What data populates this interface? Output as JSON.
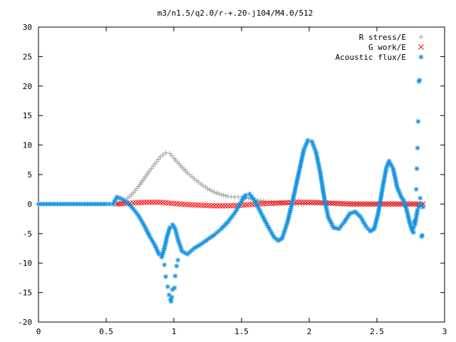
{
  "chart_data": {
    "type": "scatter",
    "title": "m3/n1.5/q2.0/r-+.20-j104/M4.0/512",
    "xlabel": "",
    "ylabel": "",
    "xlim": [
      0,
      3
    ],
    "ylim": [
      -20,
      30
    ],
    "xticks": [
      "0",
      "0.5",
      "1",
      "1.5",
      "2",
      "2.5",
      "3"
    ],
    "yticks": [
      "-20",
      "-15",
      "-10",
      "-5",
      "0",
      "5",
      "10",
      "15",
      "20",
      "25",
      "30"
    ],
    "legend_position": "top-right",
    "series": [
      {
        "name": "R stress/E",
        "legend_marker": "plus",
        "color": "#a0a0a0",
        "points": [
          [
            0.58,
            0.0
          ],
          [
            0.62,
            0.3
          ],
          [
            0.66,
            1.0
          ],
          [
            0.7,
            1.9
          ],
          [
            0.74,
            3.0
          ],
          [
            0.78,
            4.3
          ],
          [
            0.82,
            5.6
          ],
          [
            0.86,
            6.8
          ],
          [
            0.9,
            8.0
          ],
          [
            0.94,
            8.7
          ],
          [
            0.97,
            8.6
          ],
          [
            1.0,
            7.8
          ],
          [
            1.05,
            6.5
          ],
          [
            1.1,
            5.3
          ],
          [
            1.15,
            4.3
          ],
          [
            1.2,
            3.4
          ],
          [
            1.25,
            2.6
          ],
          [
            1.3,
            2.0
          ],
          [
            1.35,
            1.6
          ],
          [
            1.4,
            1.3
          ],
          [
            1.45,
            1.2
          ],
          [
            1.5,
            1.2
          ],
          [
            1.55,
            1.0
          ],
          [
            1.6,
            0.7
          ],
          [
            1.7,
            0.4
          ],
          [
            1.8,
            0.2
          ],
          [
            1.9,
            0.0
          ],
          [
            2.0,
            0.1
          ],
          [
            2.1,
            0.2
          ],
          [
            2.2,
            0.2
          ],
          [
            2.3,
            0.1
          ],
          [
            2.4,
            0.0
          ],
          [
            2.5,
            0.0
          ],
          [
            2.6,
            0.1
          ],
          [
            2.7,
            0.0
          ],
          [
            2.8,
            0.0
          ],
          [
            2.84,
            0.0
          ]
        ]
      },
      {
        "name": "G work/E",
        "legend_marker": "cross",
        "color": "#ff0000",
        "points": [
          [
            0.58,
            0.0
          ],
          [
            0.65,
            0.1
          ],
          [
            0.7,
            0.2
          ],
          [
            0.8,
            0.3
          ],
          [
            0.9,
            0.3
          ],
          [
            1.0,
            0.1
          ],
          [
            1.1,
            -0.1
          ],
          [
            1.2,
            -0.2
          ],
          [
            1.3,
            -0.3
          ],
          [
            1.4,
            -0.3
          ],
          [
            1.5,
            -0.2
          ],
          [
            1.6,
            0.0
          ],
          [
            1.7,
            0.1
          ],
          [
            1.8,
            0.2
          ],
          [
            1.9,
            0.3
          ],
          [
            2.0,
            0.3
          ],
          [
            2.1,
            0.2
          ],
          [
            2.2,
            0.1
          ],
          [
            2.3,
            0.0
          ],
          [
            2.4,
            0.0
          ],
          [
            2.5,
            0.0
          ],
          [
            2.6,
            0.0
          ],
          [
            2.7,
            0.0
          ],
          [
            2.8,
            0.0
          ],
          [
            2.84,
            0.0
          ]
        ]
      },
      {
        "name": "Acoustic flux/E",
        "legend_marker": "star",
        "color": "#1090e0",
        "points": [
          [
            0.0,
            0.0
          ],
          [
            0.1,
            0.0
          ],
          [
            0.2,
            0.0
          ],
          [
            0.3,
            0.0
          ],
          [
            0.4,
            0.0
          ],
          [
            0.5,
            0.0
          ],
          [
            0.55,
            0.0
          ],
          [
            0.58,
            1.2
          ],
          [
            0.62,
            0.8
          ],
          [
            0.66,
            0.2
          ],
          [
            0.7,
            -0.8
          ],
          [
            0.74,
            -2.0
          ],
          [
            0.78,
            -3.6
          ],
          [
            0.82,
            -5.4
          ],
          [
            0.86,
            -7.0
          ],
          [
            0.89,
            -8.5
          ],
          [
            0.91,
            -9.0
          ],
          [
            0.93,
            -7.5
          ],
          [
            0.95,
            -5.5
          ],
          [
            0.97,
            -4.0
          ],
          [
            0.99,
            -3.5
          ],
          [
            1.01,
            -4.2
          ],
          [
            1.03,
            -6.0
          ],
          [
            1.06,
            -8.0
          ],
          [
            1.1,
            -8.5
          ],
          [
            1.15,
            -7.5
          ],
          [
            1.2,
            -6.8
          ],
          [
            1.25,
            -6.0
          ],
          [
            1.3,
            -5.2
          ],
          [
            1.35,
            -4.2
          ],
          [
            1.4,
            -3.0
          ],
          [
            1.45,
            -1.5
          ],
          [
            1.5,
            0.5
          ],
          [
            1.53,
            1.5
          ],
          [
            1.56,
            1.7
          ],
          [
            1.6,
            0.5
          ],
          [
            1.65,
            -1.8
          ],
          [
            1.7,
            -4.0
          ],
          [
            1.74,
            -5.6
          ],
          [
            1.77,
            -6.2
          ],
          [
            1.8,
            -5.8
          ],
          [
            1.84,
            -3.0
          ],
          [
            1.88,
            0.8
          ],
          [
            1.92,
            5.0
          ],
          [
            1.96,
            9.2
          ],
          [
            1.99,
            10.8
          ],
          [
            2.02,
            10.6
          ],
          [
            2.05,
            8.8
          ],
          [
            2.08,
            5.5
          ],
          [
            2.11,
            1.2
          ],
          [
            2.14,
            -2.2
          ],
          [
            2.18,
            -4.0
          ],
          [
            2.22,
            -4.2
          ],
          [
            2.26,
            -3.0
          ],
          [
            2.3,
            -1.6
          ],
          [
            2.34,
            -1.3
          ],
          [
            2.38,
            -2.2
          ],
          [
            2.42,
            -3.8
          ],
          [
            2.45,
            -4.6
          ],
          [
            2.48,
            -4.2
          ],
          [
            2.51,
            -1.5
          ],
          [
            2.54,
            2.5
          ],
          [
            2.57,
            6.2
          ],
          [
            2.59,
            7.3
          ],
          [
            2.62,
            6.0
          ],
          [
            2.65,
            2.8
          ],
          [
            2.68,
            1.2
          ],
          [
            2.7,
            0.5
          ],
          [
            2.72,
            -1.0
          ],
          [
            2.74,
            -3.0
          ],
          [
            2.76,
            -4.5
          ],
          [
            2.78,
            -3.5
          ],
          [
            2.8,
            -1.0
          ],
          [
            2.82,
            0.0
          ],
          [
            2.84,
            -0.5
          ]
        ]
      },
      {
        "name": "",
        "legend_marker": "star",
        "color": "#1090e0",
        "points": [
          [
            0.93,
            -10.3
          ],
          [
            0.94,
            -12.3
          ],
          [
            0.955,
            -14.0
          ],
          [
            0.965,
            -15.4
          ],
          [
            0.975,
            -16.2
          ],
          [
            0.98,
            -16.5
          ],
          [
            0.985,
            -15.8
          ],
          [
            0.99,
            -14.5
          ],
          [
            1.005,
            -14.2
          ],
          [
            1.01,
            -12.2
          ],
          [
            1.02,
            -10.5
          ],
          [
            1.03,
            -9.5
          ],
          [
            2.79,
            2.5
          ],
          [
            2.795,
            6.0
          ],
          [
            2.8,
            9.5
          ],
          [
            2.805,
            14.0
          ],
          [
            2.81,
            20.8
          ],
          [
            2.815,
            21.0
          ],
          [
            2.82,
            1.0
          ],
          [
            2.83,
            -5.5
          ],
          [
            2.835,
            -5.3
          ],
          [
            2.77,
            -4.8
          ],
          [
            2.775,
            -3.0
          ]
        ]
      }
    ]
  }
}
